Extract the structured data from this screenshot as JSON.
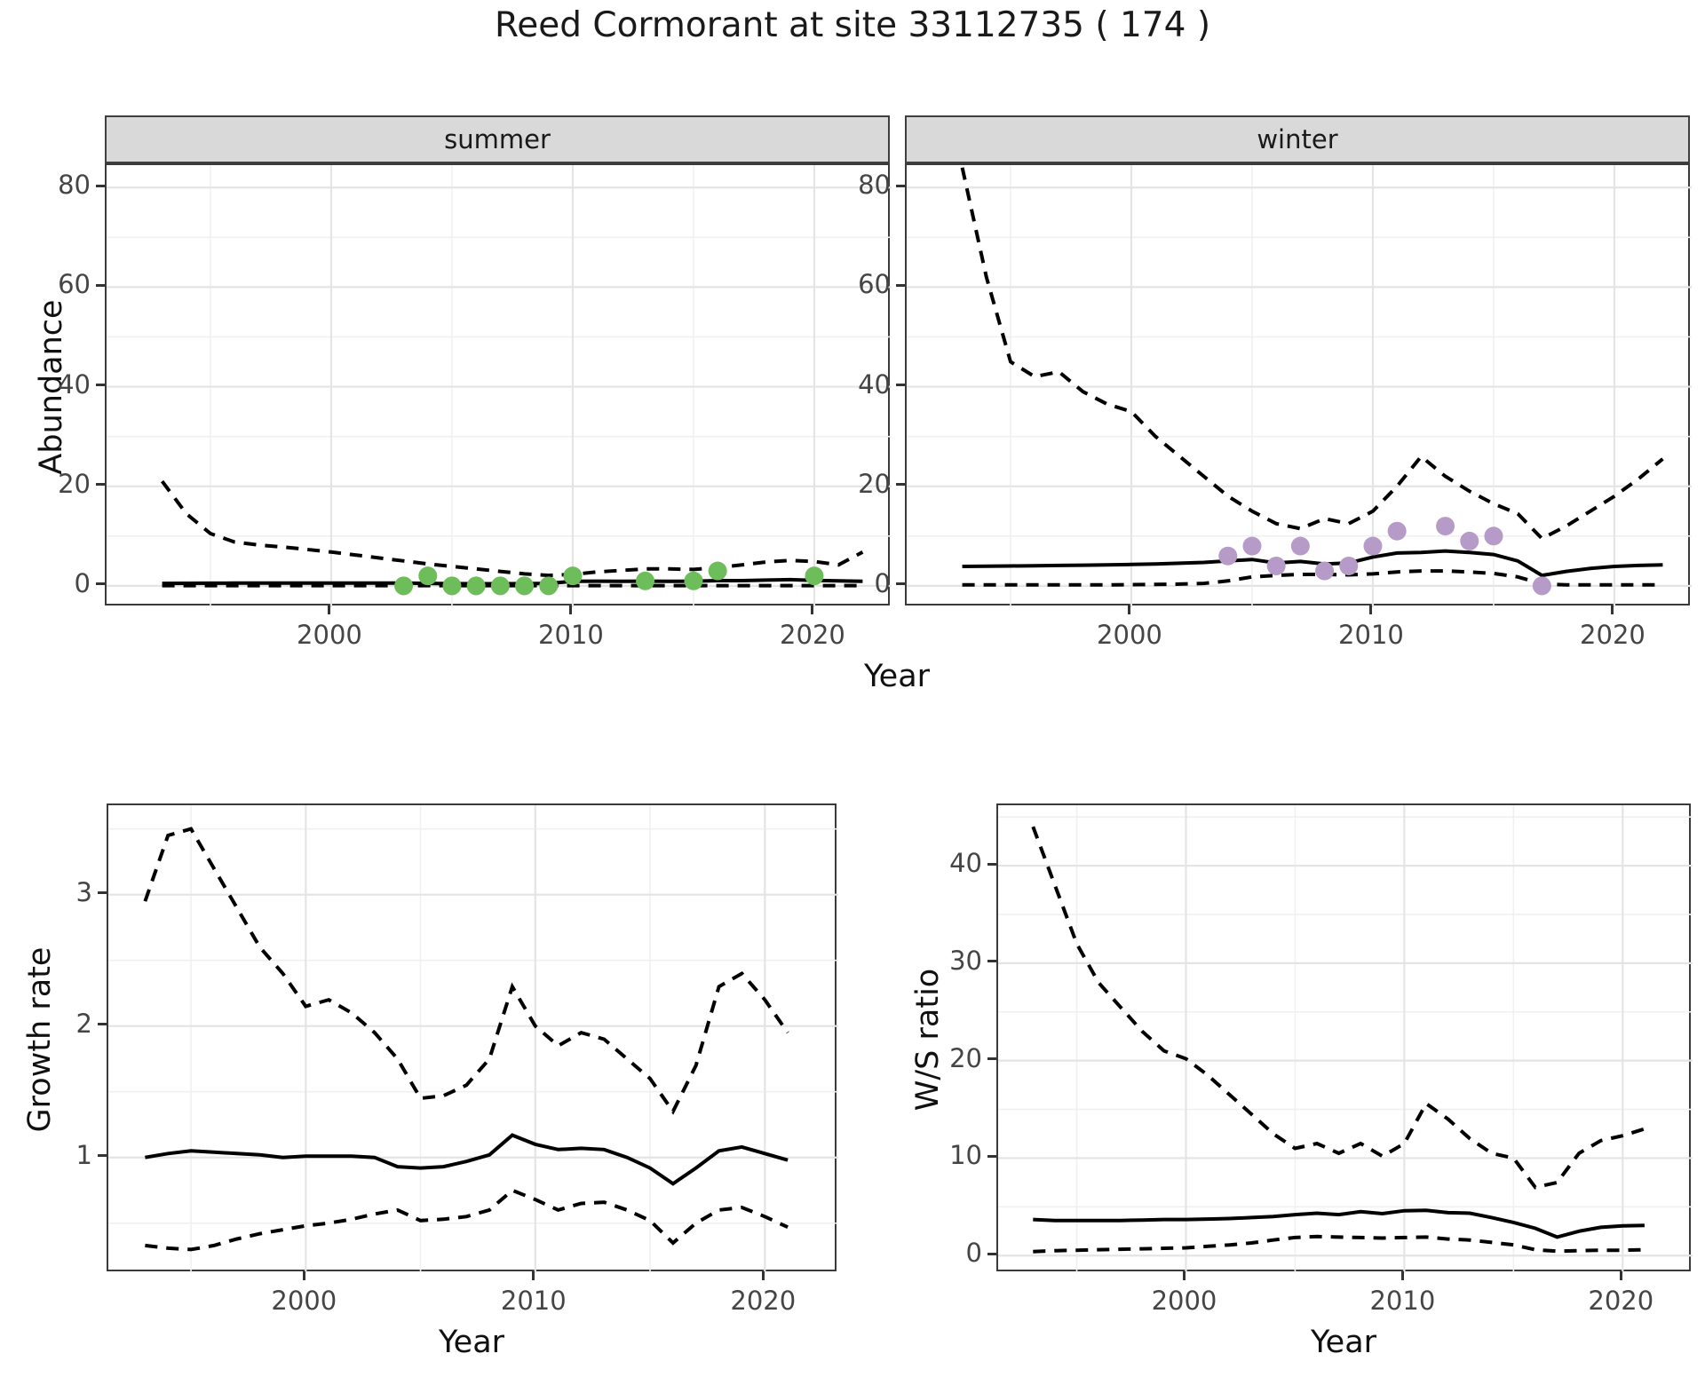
{
  "title": "Reed Cormorant at site 33112735 ( 174 )",
  "facets": [
    {
      "label": "summer"
    },
    {
      "label": "winter"
    }
  ],
  "axis_titles": {
    "x": "Year",
    "y_abundance": "Abundance",
    "y_growth": "Growth rate",
    "y_ws": "W/S ratio"
  },
  "colors": {
    "summer_points": "#6dbe5a",
    "winter_points": "#b69ac8",
    "line": "#000000",
    "strip_bg": "#d9d9d9",
    "panel_border": "#3a3a3a",
    "grid_major": "#e4e4e4",
    "grid_minor": "#f0f0f0",
    "tick_label": "#454545"
  },
  "chart_data": [
    {
      "id": "abundance-summer",
      "type": "line",
      "facet": "summer",
      "xlabel": "Year",
      "ylabel": "Abundance",
      "xlim": [
        1990.7,
        2023.2
      ],
      "ylim": [
        -4.3,
        84.5
      ],
      "x_ticks": [
        2000,
        2010,
        2020
      ],
      "x_minor": [
        1995,
        2005,
        2015
      ],
      "y_ticks": [
        0,
        20,
        40,
        60,
        80
      ],
      "y_minor": [
        10,
        30,
        50,
        70
      ],
      "x": [
        1993,
        1994,
        1995,
        1996,
        1997,
        1998,
        1999,
        2000,
        2001,
        2002,
        2003,
        2004,
        2005,
        2006,
        2007,
        2008,
        2009,
        2010,
        2011,
        2012,
        2013,
        2014,
        2015,
        2016,
        2017,
        2018,
        2019,
        2020,
        2021,
        2022
      ],
      "series": [
        {
          "name": "upper95",
          "style": "dashed",
          "values": [
            21,
            14.5,
            10.5,
            8.8,
            8.2,
            7.8,
            7.3,
            6.8,
            6.2,
            5.6,
            5.0,
            4.4,
            3.9,
            3.4,
            2.9,
            2.4,
            2.1,
            2.3,
            2.8,
            3.1,
            3.4,
            3.4,
            3.3,
            3.7,
            4.2,
            4.8,
            5.1,
            4.9,
            4.2,
            6.8
          ]
        },
        {
          "name": "lower95",
          "style": "dashed",
          "values": [
            0.05,
            0.05,
            0.05,
            0.05,
            0.05,
            0.05,
            0.05,
            0.05,
            0.05,
            0.05,
            0.05,
            0.05,
            0.05,
            0.05,
            0.05,
            0.05,
            0.05,
            0.05,
            0.05,
            0.05,
            0.05,
            0.05,
            0.05,
            0.05,
            0.05,
            0.05,
            0.05,
            0.05,
            0.05,
            0.05
          ]
        },
        {
          "name": "median",
          "style": "solid",
          "values": [
            0.5,
            0.52,
            0.54,
            0.55,
            0.55,
            0.55,
            0.55,
            0.56,
            0.56,
            0.55,
            0.55,
            0.5,
            0.45,
            0.42,
            0.42,
            0.45,
            0.5,
            0.9,
            0.95,
            0.9,
            0.95,
            0.9,
            0.95,
            1.05,
            1.05,
            1.15,
            1.25,
            1.1,
            1.0,
            0.9
          ]
        }
      ],
      "points": {
        "name": "observed-counts-summer",
        "color": "#6dbe5a",
        "x": [
          2003,
          2004,
          2005,
          2006,
          2007,
          2008,
          2009,
          2010,
          2013,
          2015,
          2016,
          2020
        ],
        "y": [
          0,
          2,
          0,
          0,
          0,
          0,
          0,
          2,
          1,
          1,
          3,
          2
        ]
      }
    },
    {
      "id": "abundance-winter",
      "type": "line",
      "facet": "winter",
      "xlabel": "Year",
      "ylabel": "Abundance",
      "xlim": [
        1990.7,
        2023.2
      ],
      "ylim": [
        -4.3,
        84.5
      ],
      "x_ticks": [
        2000,
        2010,
        2020
      ],
      "x_minor": [
        1995,
        2005,
        2015
      ],
      "y_ticks": [
        0,
        20,
        40,
        60,
        80
      ],
      "y_minor": [
        10,
        30,
        50,
        70
      ],
      "x": [
        1993,
        1994,
        1995,
        1996,
        1997,
        1998,
        1999,
        2000,
        2001,
        2002,
        2003,
        2004,
        2005,
        2006,
        2007,
        2008,
        2009,
        2010,
        2011,
        2012,
        2013,
        2014,
        2015,
        2016,
        2017,
        2018,
        2019,
        2020,
        2021,
        2022
      ],
      "series": [
        {
          "name": "upper95",
          "style": "dashed",
          "values": [
            84,
            62,
            45,
            42,
            43,
            39,
            36.5,
            35,
            30,
            26,
            22,
            18,
            15,
            12.5,
            11.5,
            13.5,
            12.5,
            15,
            20,
            26,
            22,
            19,
            16.5,
            14.5,
            9.5,
            12,
            15,
            18,
            21.5,
            25.5
          ]
        },
        {
          "name": "lower95",
          "style": "dashed",
          "values": [
            0.2,
            0.2,
            0.2,
            0.2,
            0.2,
            0.2,
            0.2,
            0.25,
            0.3,
            0.35,
            0.5,
            1.0,
            1.8,
            2.1,
            2.3,
            2.3,
            2.2,
            2.4,
            2.8,
            3.0,
            3.0,
            2.8,
            2.5,
            1.8,
            0.4,
            0.2,
            0.2,
            0.2,
            0.2,
            0.2
          ]
        },
        {
          "name": "median",
          "style": "solid",
          "values": [
            3.9,
            3.95,
            4.0,
            4.05,
            4.1,
            4.15,
            4.2,
            4.3,
            4.4,
            4.55,
            4.7,
            5.0,
            5.3,
            4.6,
            4.9,
            4.4,
            4.6,
            5.8,
            6.6,
            6.7,
            7.0,
            6.7,
            6.3,
            5.0,
            2.1,
            2.9,
            3.5,
            3.9,
            4.1,
            4.2
          ]
        }
      ],
      "points": {
        "name": "observed-counts-winter",
        "color": "#b69ac8",
        "x": [
          2004,
          2005,
          2006,
          2007,
          2008,
          2009,
          2010,
          2011,
          2013,
          2014,
          2015,
          2017
        ],
        "y": [
          6,
          8,
          4,
          8,
          3,
          4,
          8,
          11,
          12,
          9,
          10,
          0
        ]
      }
    },
    {
      "id": "growth",
      "type": "line",
      "xlabel": "Year",
      "ylabel": "Growth rate",
      "xlim": [
        1991.4,
        2023.2
      ],
      "ylim": [
        0.12,
        3.68
      ],
      "x_ticks": [
        2000,
        2010,
        2020
      ],
      "x_minor": [
        1995,
        2005,
        2015
      ],
      "y_ticks": [
        1,
        2,
        3
      ],
      "y_minor": [
        0.5,
        1.5,
        2.5,
        3.5
      ],
      "x": [
        1993,
        1994,
        1995,
        1996,
        1997,
        1998,
        1999,
        2000,
        2001,
        2002,
        2003,
        2004,
        2005,
        2006,
        2007,
        2008,
        2009,
        2010,
        2011,
        2012,
        2013,
        2014,
        2015,
        2016,
        2017,
        2018,
        2019,
        2020,
        2021
      ],
      "series": [
        {
          "name": "upper95",
          "style": "dashed",
          "values": [
            2.95,
            3.45,
            3.5,
            3.2,
            2.9,
            2.6,
            2.4,
            2.15,
            2.2,
            2.1,
            1.95,
            1.75,
            1.45,
            1.47,
            1.55,
            1.75,
            2.3,
            2.0,
            1.85,
            1.95,
            1.9,
            1.75,
            1.6,
            1.35,
            1.7,
            2.3,
            2.4,
            2.2,
            1.95
          ]
        },
        {
          "name": "lower95",
          "style": "dashed",
          "values": [
            0.33,
            0.31,
            0.3,
            0.33,
            0.38,
            0.42,
            0.45,
            0.48,
            0.5,
            0.53,
            0.57,
            0.6,
            0.52,
            0.53,
            0.55,
            0.6,
            0.75,
            0.68,
            0.6,
            0.65,
            0.66,
            0.6,
            0.52,
            0.35,
            0.5,
            0.6,
            0.62,
            0.55,
            0.47
          ]
        },
        {
          "name": "median",
          "style": "solid",
          "values": [
            1.0,
            1.03,
            1.05,
            1.04,
            1.03,
            1.02,
            1.0,
            1.01,
            1.01,
            1.01,
            1.0,
            0.93,
            0.92,
            0.93,
            0.97,
            1.02,
            1.17,
            1.1,
            1.06,
            1.07,
            1.06,
            1.0,
            0.92,
            0.8,
            0.92,
            1.05,
            1.08,
            1.03,
            0.98
          ]
        }
      ]
    },
    {
      "id": "ws",
      "type": "line",
      "xlabel": "Year",
      "ylabel": "W/S ratio",
      "xlim": [
        1991.4,
        2023.2
      ],
      "ylim": [
        -1.8,
        46.2
      ],
      "x_ticks": [
        2000,
        2010,
        2020
      ],
      "x_minor": [
        1995,
        2005,
        2015
      ],
      "y_ticks": [
        0,
        10,
        20,
        30,
        40
      ],
      "y_minor": [
        5,
        15,
        25,
        35,
        45
      ],
      "x": [
        1993,
        1994,
        1995,
        1996,
        1997,
        1998,
        1999,
        2000,
        2001,
        2002,
        2003,
        2004,
        2005,
        2006,
        2007,
        2008,
        2009,
        2010,
        2011,
        2012,
        2013,
        2014,
        2015,
        2016,
        2017,
        2018,
        2019,
        2020,
        2021
      ],
      "series": [
        {
          "name": "upper95",
          "style": "dashed",
          "values": [
            44,
            38,
            32,
            28,
            25.5,
            23,
            21,
            20.2,
            18.5,
            16.5,
            14.5,
            12.5,
            11,
            11.5,
            10.5,
            11.5,
            10.2,
            11.5,
            15.6,
            14,
            12,
            10.5,
            10,
            7,
            7.5,
            10.5,
            11.8,
            12.3,
            13
          ]
        },
        {
          "name": "lower95",
          "style": "dashed",
          "values": [
            0.4,
            0.5,
            0.55,
            0.6,
            0.65,
            0.7,
            0.75,
            0.8,
            0.95,
            1.1,
            1.3,
            1.6,
            1.85,
            1.95,
            1.9,
            1.85,
            1.8,
            1.85,
            1.9,
            1.7,
            1.6,
            1.35,
            1.1,
            0.6,
            0.45,
            0.5,
            0.55,
            0.55,
            0.6
          ]
        },
        {
          "name": "median",
          "style": "solid",
          "values": [
            3.7,
            3.6,
            3.6,
            3.6,
            3.6,
            3.65,
            3.7,
            3.7,
            3.75,
            3.8,
            3.9,
            4.0,
            4.2,
            4.35,
            4.2,
            4.5,
            4.3,
            4.6,
            4.65,
            4.4,
            4.35,
            3.9,
            3.4,
            2.8,
            1.9,
            2.5,
            2.9,
            3.05,
            3.1
          ]
        }
      ]
    }
  ]
}
